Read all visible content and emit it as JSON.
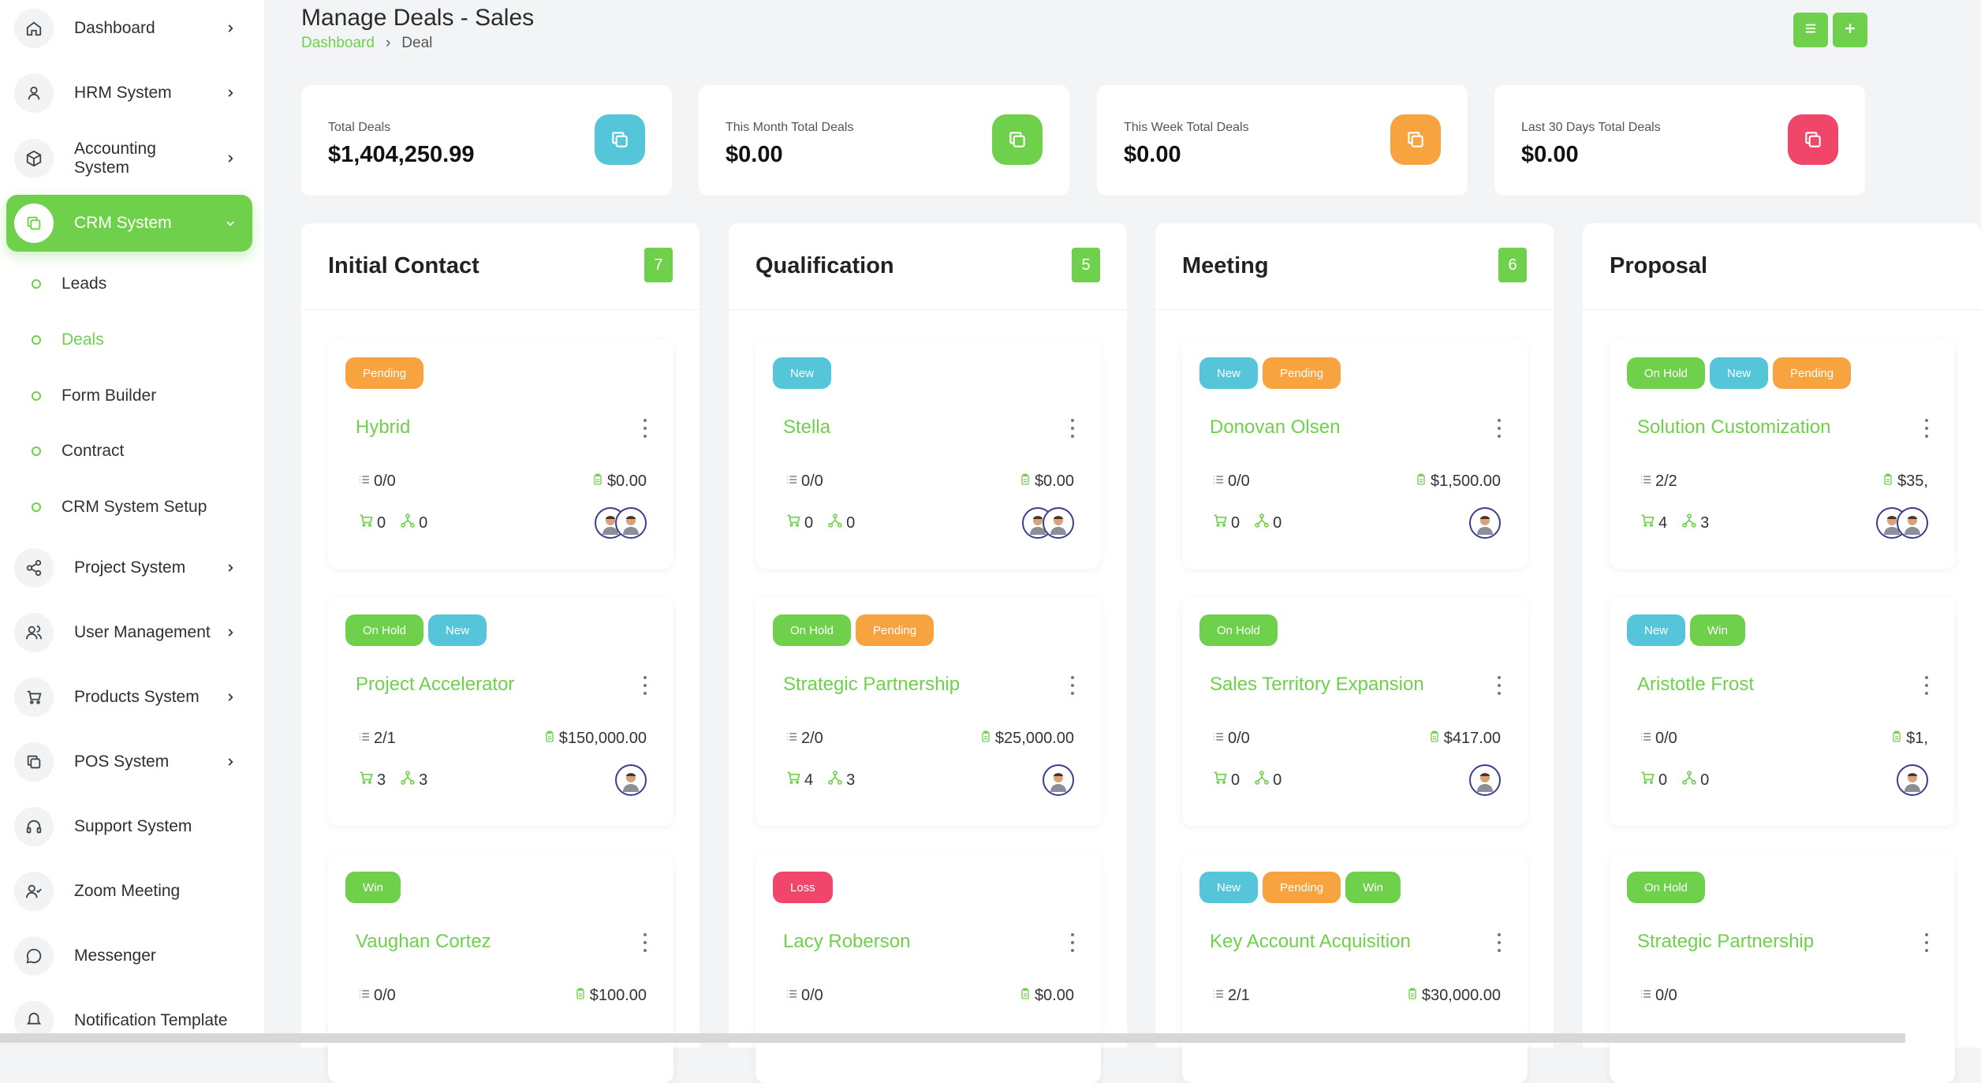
{
  "sidebar": {
    "items": [
      {
        "label": "Dashboard",
        "icon": "home-icon"
      },
      {
        "label": "HRM System",
        "icon": "user-icon"
      },
      {
        "label": "Accounting System",
        "icon": "box-icon"
      },
      {
        "label": "CRM System",
        "icon": "copy-icon"
      },
      {
        "label": "Project System",
        "icon": "share-icon"
      },
      {
        "label": "User Management",
        "icon": "users-icon"
      },
      {
        "label": "Products System",
        "icon": "cart-icon"
      },
      {
        "label": "POS System",
        "icon": "pos-icon"
      },
      {
        "label": "Support System",
        "icon": "headphones-icon"
      },
      {
        "label": "Zoom Meeting",
        "icon": "user-check-icon"
      },
      {
        "label": "Messenger",
        "icon": "chat-icon"
      },
      {
        "label": "Notification Template",
        "icon": "bell-icon"
      }
    ],
    "crm_sub": [
      "Leads",
      "Deals",
      "Form Builder",
      "Contract",
      "CRM System Setup"
    ]
  },
  "header": {
    "title": "Manage Deals - Sales",
    "breadcrumb_home": "Dashboard",
    "breadcrumb_separator": "›",
    "breadcrumb_current": "Deal"
  },
  "stats": [
    {
      "label": "Total Deals",
      "value": "$1,404,250.99",
      "color": "#55c6d9"
    },
    {
      "label": "This Month Total Deals",
      "value": "$0.00",
      "color": "#6fd04b"
    },
    {
      "label": "This Week Total Deals",
      "value": "$0.00",
      "color": "#f7a440"
    },
    {
      "label": "Last 30 Days Total Deals",
      "value": "$0.00",
      "color": "#f0466a"
    }
  ],
  "colors": {
    "accent": "#6fd04b",
    "pending": "#f7a440",
    "new": "#55c6d9",
    "loss": "#f0466a"
  },
  "columns": [
    {
      "title": "Initial Contact",
      "count": "7",
      "deals": [
        {
          "badges": [
            "Pending"
          ],
          "name": "Hybrid",
          "tasks": "0/0",
          "price": "$0.00",
          "products": "0",
          "sources": "0"
        },
        {
          "badges": [
            "On Hold",
            "New"
          ],
          "name": "Project Accelerator",
          "tasks": "2/1",
          "price": "$150,000.00",
          "products": "3",
          "sources": "3"
        },
        {
          "badges": [
            "Win"
          ],
          "name": "Vaughan Cortez",
          "tasks": "0/0",
          "price": "$100.00",
          "products": "",
          "sources": ""
        }
      ]
    },
    {
      "title": "Qualification",
      "count": "5",
      "deals": [
        {
          "badges": [
            "New"
          ],
          "name": "Stella",
          "tasks": "0/0",
          "price": "$0.00",
          "products": "0",
          "sources": "0"
        },
        {
          "badges": [
            "On Hold",
            "Pending"
          ],
          "name": "Strategic Partnership",
          "tasks": "2/0",
          "price": "$25,000.00",
          "products": "4",
          "sources": "3"
        },
        {
          "badges": [
            "Loss"
          ],
          "name": "Lacy Roberson",
          "tasks": "0/0",
          "price": "$0.00",
          "products": "",
          "sources": ""
        }
      ]
    },
    {
      "title": "Meeting",
      "count": "6",
      "deals": [
        {
          "badges": [
            "New",
            "Pending"
          ],
          "name": "Donovan Olsen",
          "tasks": "0/0",
          "price": "$1,500.00",
          "products": "0",
          "sources": "0"
        },
        {
          "badges": [
            "On Hold"
          ],
          "name": "Sales Territory Expansion",
          "tasks": "0/0",
          "price": "$417.00",
          "products": "0",
          "sources": "0"
        },
        {
          "badges": [
            "New",
            "Pending",
            "Win"
          ],
          "name": "Key Account Acquisition",
          "tasks": "2/1",
          "price": "$30,000.00",
          "products": "",
          "sources": ""
        }
      ]
    },
    {
      "title": "Proposal",
      "count": "",
      "deals": [
        {
          "badges": [
            "On Hold",
            "New",
            "Pending"
          ],
          "name": "Solution Customization",
          "tasks": "2/2",
          "price": "$35,",
          "products": "4",
          "sources": "3"
        },
        {
          "badges": [
            "New",
            "Win"
          ],
          "name": "Aristotle Frost",
          "tasks": "0/0",
          "price": "$1,",
          "products": "0",
          "sources": "0"
        },
        {
          "badges": [
            "On Hold"
          ],
          "name": "Strategic Partnership",
          "tasks": "0/0",
          "price": "",
          "products": "",
          "sources": ""
        }
      ]
    }
  ]
}
